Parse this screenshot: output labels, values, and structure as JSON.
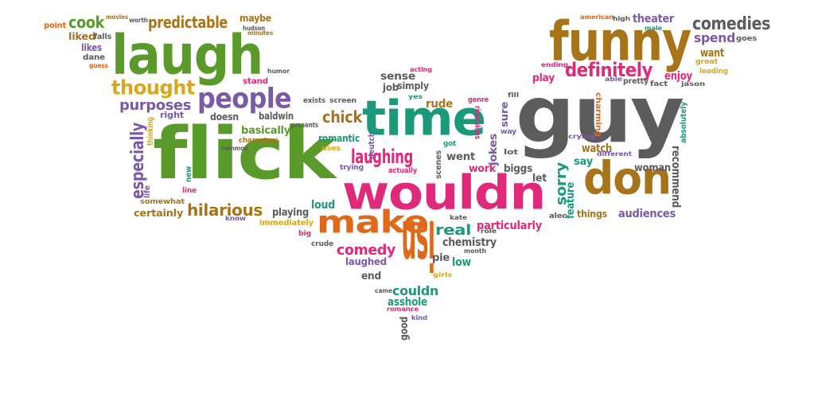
{
  "colors": {
    "green": "#5a9a2a",
    "pink": "#e0297a",
    "teal": "#1a9a7a",
    "orange": "#e0681a",
    "gray": "#5c5c5c",
    "purple": "#7a5aa8",
    "brown": "#a8741a",
    "gold": "#d8a81a"
  },
  "words": [
    {
      "text": "guy",
      "color": "gray"
    },
    {
      "text": "flick",
      "color": "green"
    },
    {
      "text": "funny",
      "color": "brown"
    },
    {
      "text": "laugh",
      "color": "green"
    },
    {
      "text": "time",
      "color": "teal"
    },
    {
      "text": "wouldn",
      "color": "pink"
    },
    {
      "text": "isn",
      "color": "orange"
    },
    {
      "text": "don",
      "color": "brown"
    },
    {
      "text": "make",
      "color": "orange"
    },
    {
      "text": "people",
      "color": "purple"
    },
    {
      "text": "thought",
      "color": "gold"
    },
    {
      "text": "definitely",
      "color": "pink"
    },
    {
      "text": "predictable",
      "color": "brown"
    },
    {
      "text": "cook",
      "color": "green"
    },
    {
      "text": "comedies",
      "color": "gray"
    },
    {
      "text": "laughing",
      "color": "pink"
    },
    {
      "text": "hilarious",
      "color": "brown"
    },
    {
      "text": "chick",
      "color": "brown"
    },
    {
      "text": "especially",
      "color": "purple"
    },
    {
      "text": "purposes",
      "color": "purple"
    },
    {
      "text": "real",
      "color": "teal"
    },
    {
      "text": "comedy",
      "color": "pink"
    },
    {
      "text": "sorry",
      "color": "teal"
    },
    {
      "text": "spend",
      "color": "purple"
    },
    {
      "text": "theater",
      "color": "purple"
    },
    {
      "text": "want",
      "color": "brown"
    },
    {
      "text": "enjoy",
      "color": "pink"
    },
    {
      "text": "play",
      "color": "pink"
    },
    {
      "text": "watch",
      "color": "brown"
    },
    {
      "text": "recommend",
      "color": "gray"
    },
    {
      "text": "woman",
      "color": "gray"
    },
    {
      "text": "audiences",
      "color": "purple"
    },
    {
      "text": "things",
      "color": "brown"
    },
    {
      "text": "feature",
      "color": "teal"
    },
    {
      "text": "say",
      "color": "teal"
    },
    {
      "text": "let",
      "color": "gray"
    },
    {
      "text": "particularly",
      "color": "pink"
    },
    {
      "text": "chemistry",
      "color": "gray"
    },
    {
      "text": "couldn",
      "color": "teal"
    },
    {
      "text": "asshole",
      "color": "teal"
    },
    {
      "text": "low",
      "color": "teal"
    },
    {
      "text": "pie",
      "color": "gray"
    },
    {
      "text": "end",
      "color": "gray"
    },
    {
      "text": "laughed",
      "color": "purple"
    },
    {
      "text": "good",
      "color": "gray"
    },
    {
      "text": "loud",
      "color": "teal"
    },
    {
      "text": "playing",
      "color": "gray"
    },
    {
      "text": "certainly",
      "color": "brown"
    },
    {
      "text": "basically",
      "color": "green"
    },
    {
      "text": "baldwin",
      "color": "gray"
    },
    {
      "text": "doesn",
      "color": "gray"
    },
    {
      "text": "rude",
      "color": "brown"
    },
    {
      "text": "sense",
      "color": "gray"
    },
    {
      "text": "job",
      "color": "gray"
    },
    {
      "text": "simply",
      "color": "gray"
    },
    {
      "text": "romantic",
      "color": "teal"
    },
    {
      "text": "went",
      "color": "gray"
    },
    {
      "text": "work",
      "color": "pink"
    },
    {
      "text": "jokes",
      "color": "purple"
    },
    {
      "text": "sure",
      "color": "purple"
    },
    {
      "text": "biggs",
      "color": "gray"
    },
    {
      "text": "likes",
      "color": "purple"
    },
    {
      "text": "liked",
      "color": "brown"
    },
    {
      "text": "falls",
      "color": "gray"
    },
    {
      "text": "dane",
      "color": "gray"
    },
    {
      "text": "guess",
      "color": "orange"
    },
    {
      "text": "point",
      "color": "orange"
    },
    {
      "text": "movies",
      "color": "brown"
    },
    {
      "text": "worth",
      "color": "gray"
    },
    {
      "text": "maybe",
      "color": "brown"
    },
    {
      "text": "hudson",
      "color": "gray"
    },
    {
      "text": "minutes",
      "color": "brown"
    },
    {
      "text": "humor",
      "color": "gray"
    },
    {
      "text": "stand",
      "color": "pink"
    },
    {
      "text": "right",
      "color": "purple"
    },
    {
      "text": "exists",
      "color": "gray"
    },
    {
      "text": "screen",
      "color": "gray"
    },
    {
      "text": "presents",
      "color": "gray"
    },
    {
      "text": "characters",
      "color": "brown"
    },
    {
      "text": "common",
      "color": "gray"
    },
    {
      "text": "thinking",
      "color": "gold"
    },
    {
      "text": "life",
      "color": "purple"
    },
    {
      "text": "new",
      "color": "teal"
    },
    {
      "text": "line",
      "color": "pink"
    },
    {
      "text": "somewhat",
      "color": "brown"
    },
    {
      "text": "know",
      "color": "purple"
    },
    {
      "text": "immediately",
      "color": "gold"
    },
    {
      "text": "big",
      "color": "pink"
    },
    {
      "text": "crude",
      "color": "gray"
    },
    {
      "text": "acting",
      "color": "pink"
    },
    {
      "text": "yes",
      "color": "teal"
    },
    {
      "text": "genre",
      "color": "pink"
    },
    {
      "text": "ridiculous",
      "color": "pink"
    },
    {
      "text": "got",
      "color": "teal"
    },
    {
      "text": "uses",
      "color": "gold"
    },
    {
      "text": "trying",
      "color": "purple"
    },
    {
      "text": "actually",
      "color": "pink"
    },
    {
      "text": "deutch",
      "color": "purple"
    },
    {
      "text": "scenes",
      "color": "gray"
    },
    {
      "text": "kate",
      "color": "gray"
    },
    {
      "text": "role",
      "color": "gray"
    },
    {
      "text": "month",
      "color": "gray"
    },
    {
      "text": "girls",
      "color": "gold"
    },
    {
      "text": "came",
      "color": "gray"
    },
    {
      "text": "romance",
      "color": "pink"
    },
    {
      "text": "kind",
      "color": "purple"
    },
    {
      "text": "fill",
      "color": "gray"
    },
    {
      "text": "way",
      "color": "purple"
    },
    {
      "text": "lot",
      "color": "gray"
    },
    {
      "text": "american",
      "color": "orange"
    },
    {
      "text": "high",
      "color": "gray"
    },
    {
      "text": "male",
      "color": "teal"
    },
    {
      "text": "goes",
      "color": "gray"
    },
    {
      "text": "great",
      "color": "gold"
    },
    {
      "text": "leading",
      "color": "gold"
    },
    {
      "text": "ending",
      "color": "pink"
    },
    {
      "text": "able",
      "color": "purple"
    },
    {
      "text": "pretty",
      "color": "gray"
    },
    {
      "text": "fact",
      "color": "gray"
    },
    {
      "text": "jason",
      "color": "gray"
    },
    {
      "text": "absolutely",
      "color": "teal"
    },
    {
      "text": "charming",
      "color": "orange"
    },
    {
      "text": "crying",
      "color": "purple"
    },
    {
      "text": "different",
      "color": "purple"
    },
    {
      "text": "alec",
      "color": "gray"
    }
  ]
}
